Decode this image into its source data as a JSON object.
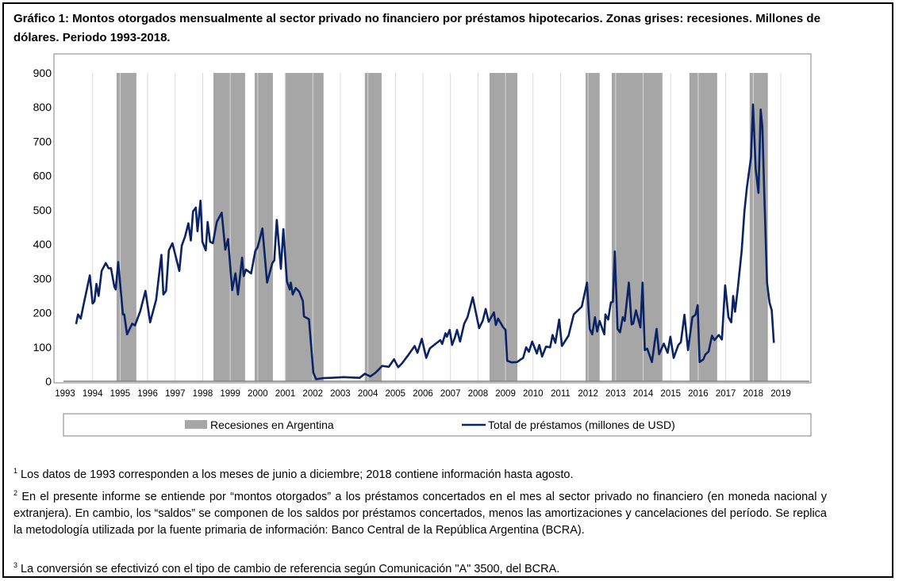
{
  "title": "Gráfico 1: Montos otorgados mensualmente al sector privado no financiero por préstamos hipotecarios. Zonas grises: recesiones. Millones de dólares. Periodo 1993-2018.",
  "chart_data": {
    "type": "line",
    "title": "Gráfico 1: Montos otorgados mensualmente al sector privado no financiero por préstamos hipotecarios. Zonas grises: recesiones. Millones de dólares. Periodo 1993-2018.",
    "xlabel": "",
    "ylabel": "",
    "xlim": [
      1993,
      2019
    ],
    "ylim": [
      0,
      900
    ],
    "xticks": [
      "1993",
      "1994",
      "1995",
      "1996",
      "1997",
      "1998",
      "1999",
      "2000",
      "2001",
      "2002",
      "2003",
      "2004",
      "2005",
      "2006",
      "2007",
      "2008",
      "2009",
      "2010",
      "2011",
      "2012",
      "2013",
      "2014",
      "2015",
      "2016",
      "2017",
      "2018",
      "2019"
    ],
    "yticks": [
      "0",
      "100",
      "200",
      "300",
      "400",
      "500",
      "600",
      "700",
      "800",
      "900"
    ],
    "grid": "vertical",
    "legend_placement": "bottom",
    "legend": [
      "Recesiones en Argentina",
      "Total de préstamos (millones de USD)"
    ],
    "colors": {
      "line": "#0b2265",
      "recession": "#a6a6a6"
    },
    "recessions": [
      [
        1994.87,
        1995.59
      ],
      [
        1998.39,
        1999.54
      ],
      [
        1999.89,
        2000.55
      ],
      [
        2000.98,
        2002.39
      ],
      [
        2003.89,
        2004.5
      ],
      [
        2008.42,
        2009.43
      ],
      [
        2011.91,
        2012.42
      ],
      [
        2012.86,
        2014.7
      ],
      [
        2015.68,
        2016.69
      ],
      [
        2017.87,
        2018.53
      ]
    ],
    "series": [
      {
        "name": "Total de préstamos (millones de USD)",
        "points": [
          [
            1993.4,
            167
          ],
          [
            1993.47,
            195
          ],
          [
            1993.57,
            183
          ],
          [
            1993.67,
            222
          ],
          [
            1993.9,
            309
          ],
          [
            1994.0,
            227
          ],
          [
            1994.07,
            234
          ],
          [
            1994.14,
            284
          ],
          [
            1994.22,
            249
          ],
          [
            1994.33,
            322
          ],
          [
            1994.48,
            345
          ],
          [
            1994.58,
            330
          ],
          [
            1994.67,
            330
          ],
          [
            1994.79,
            276
          ],
          [
            1994.84,
            268
          ],
          [
            1994.93,
            348
          ],
          [
            1995.1,
            195
          ],
          [
            1995.15,
            195
          ],
          [
            1995.25,
            137
          ],
          [
            1995.44,
            168
          ],
          [
            1995.54,
            163
          ],
          [
            1995.73,
            204
          ],
          [
            1995.92,
            264
          ],
          [
            1996.09,
            172
          ],
          [
            1996.31,
            238
          ],
          [
            1996.5,
            369
          ],
          [
            1996.57,
            253
          ],
          [
            1996.67,
            264
          ],
          [
            1996.77,
            382
          ],
          [
            1996.9,
            403
          ],
          [
            1997.15,
            322
          ],
          [
            1997.24,
            396
          ],
          [
            1997.36,
            423
          ],
          [
            1997.48,
            461
          ],
          [
            1997.57,
            411
          ],
          [
            1997.65,
            496
          ],
          [
            1997.75,
            507
          ],
          [
            1997.81,
            438
          ],
          [
            1997.92,
            527
          ],
          [
            1997.99,
            407
          ],
          [
            1998.11,
            382
          ],
          [
            1998.18,
            465
          ],
          [
            1998.27,
            407
          ],
          [
            1998.37,
            403
          ],
          [
            1998.51,
            465
          ],
          [
            1998.69,
            492
          ],
          [
            1998.82,
            384
          ],
          [
            1998.92,
            415
          ],
          [
            1999.07,
            266
          ],
          [
            1999.19,
            315
          ],
          [
            1999.28,
            253
          ],
          [
            1999.43,
            361
          ],
          [
            1999.49,
            307
          ],
          [
            1999.57,
            326
          ],
          [
            1999.76,
            315
          ],
          [
            1999.91,
            380
          ],
          [
            2000.0,
            392
          ],
          [
            2000.17,
            446
          ],
          [
            2000.34,
            288
          ],
          [
            2000.53,
            345
          ],
          [
            2000.6,
            353
          ],
          [
            2000.69,
            471
          ],
          [
            2000.84,
            328
          ],
          [
            2000.93,
            444
          ],
          [
            2001.06,
            292
          ],
          [
            2001.16,
            268
          ],
          [
            2001.2,
            288
          ],
          [
            2001.27,
            253
          ],
          [
            2001.38,
            272
          ],
          [
            2001.51,
            261
          ],
          [
            2001.64,
            234
          ],
          [
            2001.68,
            189
          ],
          [
            2001.86,
            181
          ],
          [
            2002.02,
            25
          ],
          [
            2002.12,
            6
          ],
          [
            2002.36,
            9
          ],
          [
            2002.65,
            10
          ],
          [
            2003.12,
            12
          ],
          [
            2003.7,
            10
          ],
          [
            2003.89,
            22
          ],
          [
            2004.09,
            14
          ],
          [
            2004.28,
            25
          ],
          [
            2004.52,
            45
          ],
          [
            2004.76,
            42
          ],
          [
            2004.95,
            64
          ],
          [
            2005.1,
            41
          ],
          [
            2005.24,
            52
          ],
          [
            2005.48,
            78
          ],
          [
            2005.7,
            103
          ],
          [
            2005.8,
            83
          ],
          [
            2005.96,
            124
          ],
          [
            2006.12,
            68
          ],
          [
            2006.25,
            96
          ],
          [
            2006.47,
            110
          ],
          [
            2006.63,
            120
          ],
          [
            2006.7,
            109
          ],
          [
            2006.82,
            140
          ],
          [
            2006.87,
            130
          ],
          [
            2006.97,
            150
          ],
          [
            2007.06,
            106
          ],
          [
            2007.16,
            127
          ],
          [
            2007.24,
            150
          ],
          [
            2007.35,
            116
          ],
          [
            2007.5,
            168
          ],
          [
            2007.62,
            187
          ],
          [
            2007.81,
            245
          ],
          [
            2008.04,
            155
          ],
          [
            2008.17,
            176
          ],
          [
            2008.28,
            211
          ],
          [
            2008.39,
            174
          ],
          [
            2008.58,
            201
          ],
          [
            2008.65,
            164
          ],
          [
            2008.73,
            183
          ],
          [
            2008.91,
            158
          ],
          [
            2009.0,
            150
          ],
          [
            2009.06,
            60
          ],
          [
            2009.22,
            55
          ],
          [
            2009.42,
            56
          ],
          [
            2009.56,
            64
          ],
          [
            2009.64,
            68
          ],
          [
            2009.75,
            99
          ],
          [
            2009.85,
            86
          ],
          [
            2009.97,
            116
          ],
          [
            2010.14,
            81
          ],
          [
            2010.23,
            106
          ],
          [
            2010.33,
            72
          ],
          [
            2010.47,
            101
          ],
          [
            2010.62,
            99
          ],
          [
            2010.71,
            135
          ],
          [
            2010.81,
            112
          ],
          [
            2010.95,
            180
          ],
          [
            2011.05,
            103
          ],
          [
            2011.29,
            133
          ],
          [
            2011.48,
            195
          ],
          [
            2011.63,
            207
          ],
          [
            2011.77,
            218
          ],
          [
            2011.96,
            288
          ],
          [
            2012.06,
            153
          ],
          [
            2012.15,
            137
          ],
          [
            2012.25,
            187
          ],
          [
            2012.33,
            145
          ],
          [
            2012.42,
            176
          ],
          [
            2012.59,
            137
          ],
          [
            2012.63,
            195
          ],
          [
            2012.73,
            180
          ],
          [
            2012.83,
            230
          ],
          [
            2012.9,
            232
          ],
          [
            2012.97,
            379
          ],
          [
            2013.07,
            153
          ],
          [
            2013.16,
            143
          ],
          [
            2013.26,
            187
          ],
          [
            2013.33,
            176
          ],
          [
            2013.48,
            288
          ],
          [
            2013.58,
            166
          ],
          [
            2013.64,
            168
          ],
          [
            2013.74,
            207
          ],
          [
            2013.9,
            157
          ],
          [
            2013.98,
            288
          ],
          [
            2014.06,
            91
          ],
          [
            2014.15,
            95
          ],
          [
            2014.32,
            56
          ],
          [
            2014.49,
            153
          ],
          [
            2014.58,
            79
          ],
          [
            2014.75,
            110
          ],
          [
            2014.89,
            83
          ],
          [
            2014.99,
            130
          ],
          [
            2015.11,
            68
          ],
          [
            2015.28,
            106
          ],
          [
            2015.37,
            114
          ],
          [
            2015.5,
            194
          ],
          [
            2015.63,
            91
          ],
          [
            2015.79,
            187
          ],
          [
            2015.9,
            194
          ],
          [
            2015.98,
            222
          ],
          [
            2016.05,
            56
          ],
          [
            2016.19,
            64
          ],
          [
            2016.26,
            78
          ],
          [
            2016.38,
            87
          ],
          [
            2016.5,
            133
          ],
          [
            2016.59,
            120
          ],
          [
            2016.75,
            135
          ],
          [
            2016.86,
            122
          ],
          [
            2016.98,
            280
          ],
          [
            2017.1,
            187
          ],
          [
            2017.2,
            172
          ],
          [
            2017.27,
            249
          ],
          [
            2017.34,
            203
          ],
          [
            2017.44,
            272
          ],
          [
            2017.58,
            380
          ],
          [
            2017.68,
            496
          ],
          [
            2017.77,
            565
          ],
          [
            2017.92,
            654
          ],
          [
            2017.99,
            808
          ],
          [
            2018.09,
            619
          ],
          [
            2018.19,
            550
          ],
          [
            2018.27,
            793
          ],
          [
            2018.33,
            743
          ],
          [
            2018.4,
            550
          ],
          [
            2018.5,
            288
          ],
          [
            2018.59,
            230
          ],
          [
            2018.67,
            207
          ],
          [
            2018.75,
            112
          ]
        ]
      }
    ]
  },
  "notes": [
    {
      "num": "1",
      "text": " Los datos de 1993 corresponden a los meses de junio a diciembre; 2018 contiene información hasta agosto."
    },
    {
      "num": "2",
      "text": " En el presente informe se entiende por “montos otorgados” a los préstamos concertados en el mes al sector privado no financiero (en moneda nacional y extranjera). En cambio, los “saldos” se componen de los saldos por préstamos concertados, menos las amortizaciones y cancelaciones del período. Se replica la metodología utilizada por la fuente primaria de información: Banco Central de la República Argentina (BCRA)."
    },
    {
      "num": "3",
      "text": " La conversión se efectivizó con el tipo de cambio de referencia según Comunicación \"A\" 3500, del BCRA."
    }
  ]
}
